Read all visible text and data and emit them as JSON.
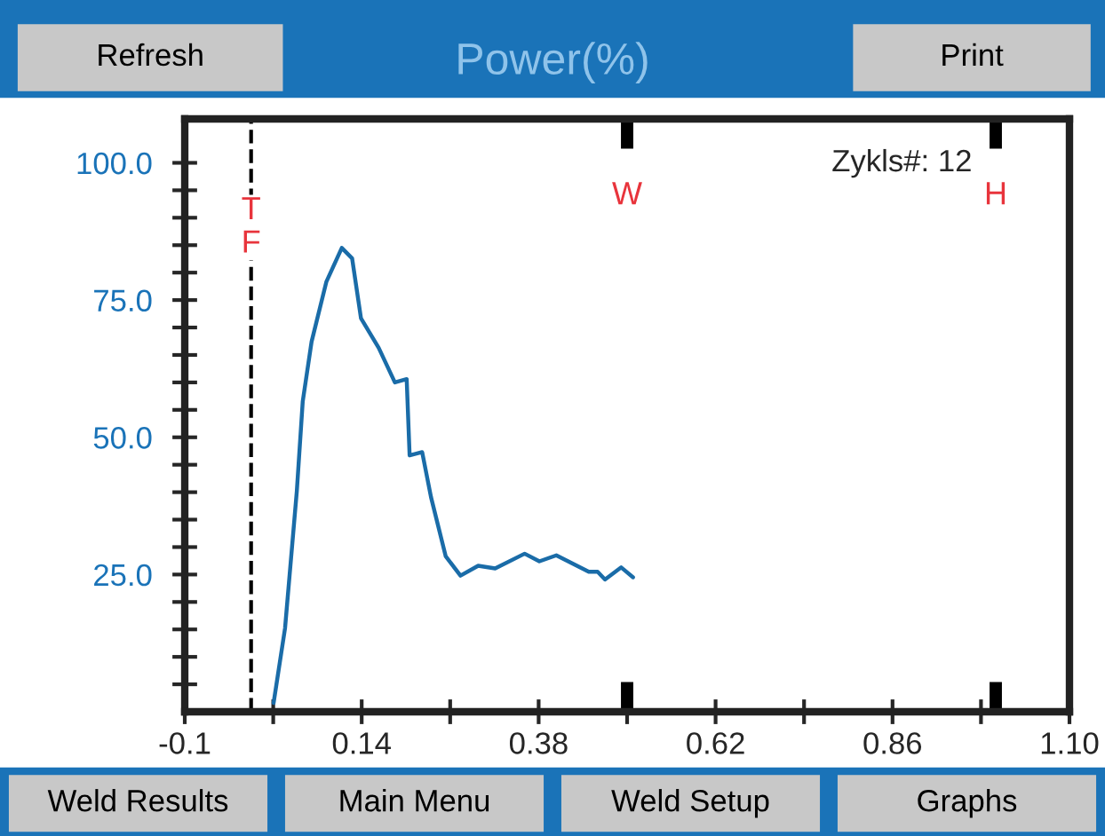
{
  "chart_data": {
    "type": "line",
    "title": "Power(%)",
    "x": [
      0.0205,
      0.036,
      0.052,
      0.06,
      0.072,
      0.092,
      0.113,
      0.127,
      0.139,
      0.163,
      0.185,
      0.201,
      0.205,
      0.222,
      0.234,
      0.254,
      0.274,
      0.298,
      0.321,
      0.361,
      0.381,
      0.404,
      0.448,
      0.46,
      0.47,
      0.492,
      0.508
    ],
    "series": [
      {
        "color": "#1a6ca8",
        "values": [
          1.6,
          15.2,
          40.2,
          56.5,
          67.4,
          78.3,
          84.5,
          82.6,
          71.7,
          66.3,
          60.0,
          60.6,
          46.7,
          47.3,
          39.1,
          28.3,
          24.8,
          26.6,
          26.1,
          28.8,
          27.4,
          28.5,
          25.5,
          25.5,
          24.1,
          26.3,
          24.5
        ]
      }
    ],
    "xlim": [
      -0.1,
      1.1
    ],
    "ylim": [
      0,
      108
    ],
    "xticks": [
      -0.1,
      {
        "value": 0.02,
        "label": null
      },
      0.14,
      {
        "value": 0.26,
        "label": null
      },
      0.38,
      {
        "value": 0.5,
        "label": null
      },
      0.62,
      {
        "value": 0.74,
        "label": null
      },
      0.86,
      {
        "value": 0.98,
        "label": null
      },
      {
        "value": 1.1,
        "label": "1.10"
      }
    ],
    "yticks": [
      {
        "value": 5,
        "label": null
      },
      {
        "value": 10,
        "label": null
      },
      {
        "value": 15,
        "label": null
      },
      {
        "value": 20,
        "label": null
      },
      {
        "value": 25,
        "label": "25.0"
      },
      {
        "value": 30,
        "label": null
      },
      {
        "value": 35,
        "label": null
      },
      {
        "value": 40,
        "label": null
      },
      {
        "value": 45,
        "label": null
      },
      {
        "value": 50,
        "label": "50.0"
      },
      {
        "value": 55,
        "label": null
      },
      {
        "value": 60,
        "label": null
      },
      {
        "value": 65,
        "label": null
      },
      {
        "value": 70,
        "label": null
      },
      {
        "value": 75,
        "label": "75.0"
      },
      {
        "value": 80,
        "label": null
      },
      {
        "value": 85,
        "label": null
      },
      {
        "value": 90,
        "label": null
      },
      {
        "value": 95,
        "label": null
      },
      {
        "value": 100,
        "label": "100.0"
      }
    ],
    "ref_lines": [
      {
        "axis": "x",
        "value": -0.01,
        "label": "T\nF",
        "line_style": "dashed",
        "color": "#000000"
      },
      {
        "axis": "x",
        "value": 0.5,
        "label": "W",
        "line_style": "solid",
        "color": "#000000"
      },
      {
        "axis": "x",
        "value": 1.0,
        "label": "H",
        "line_style": "solid",
        "color": "#000000"
      }
    ],
    "annotations": [
      "Zykls#: 12",
      "Refresh",
      "Print",
      "Weld Results",
      "Main Menu",
      "Weld Setup",
      "Graphs"
    ],
    "grid": false,
    "legend": false,
    "marker": "none",
    "line_style": "solid"
  }
}
